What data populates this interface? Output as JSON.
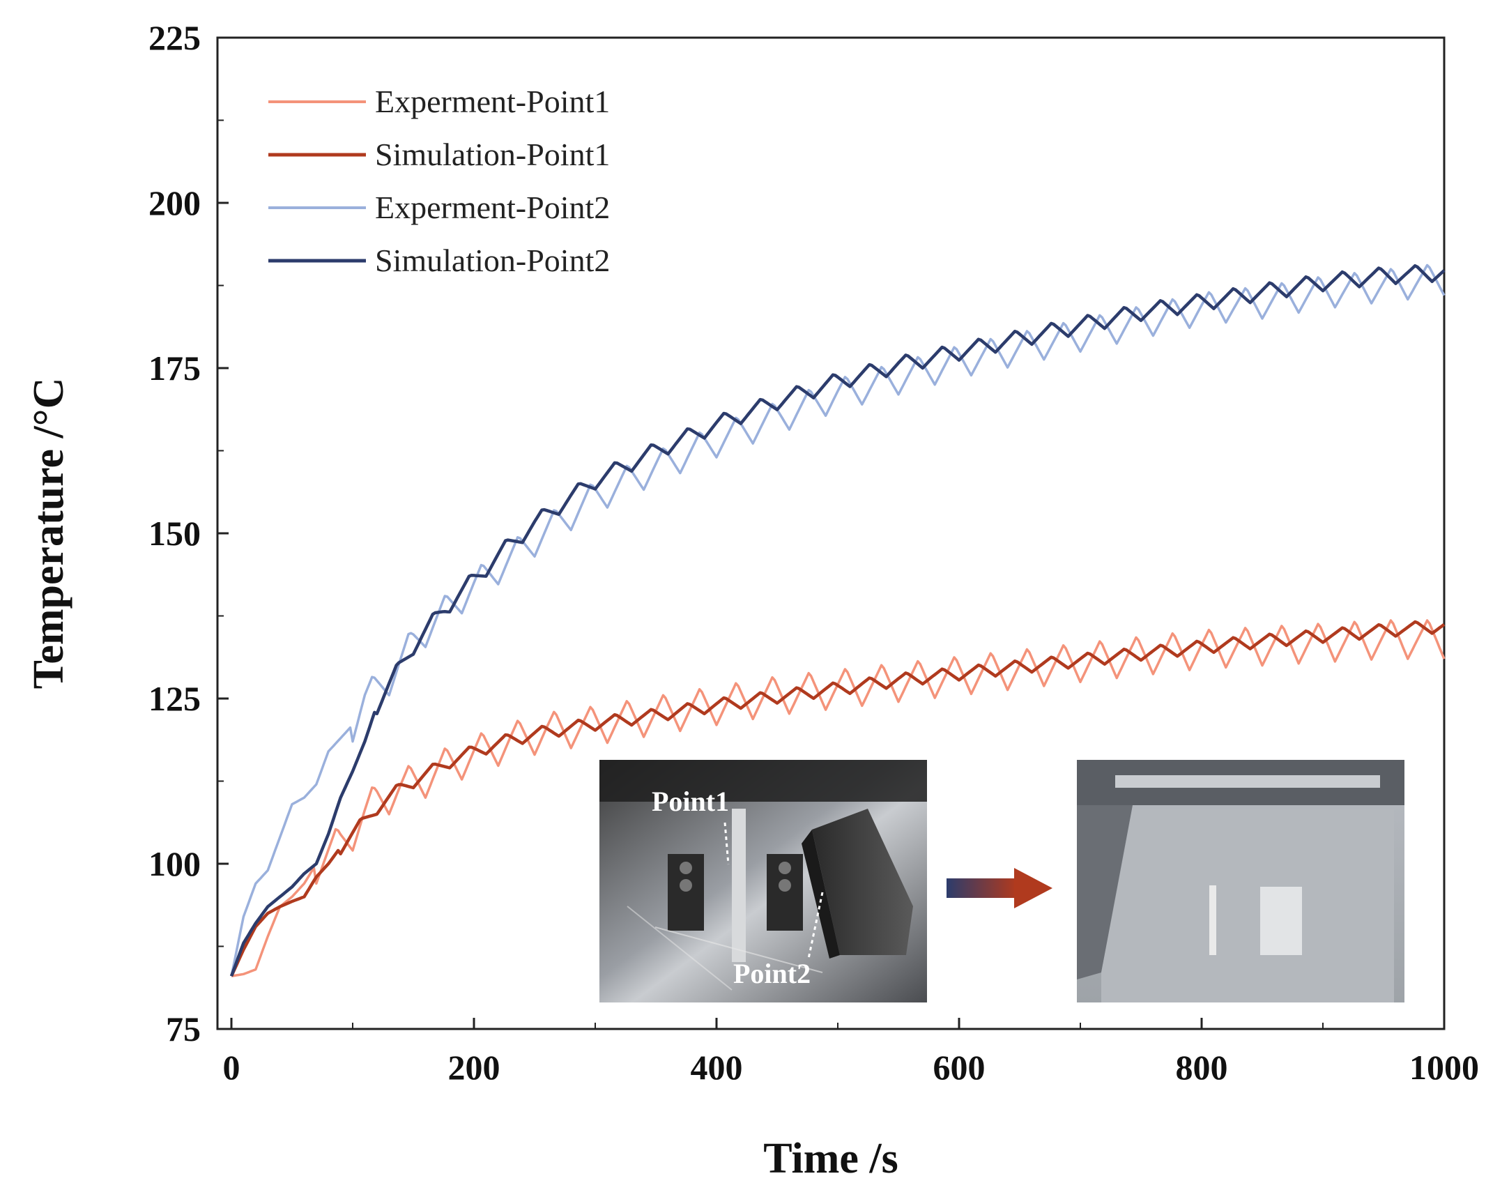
{
  "chart_data": {
    "type": "line",
    "title": "",
    "xlabel": "Time /s",
    "ylabel": "Temperature /°C",
    "xlim": [
      0,
      1000
    ],
    "ylim": [
      75,
      225
    ],
    "xticks": [
      0,
      200,
      400,
      600,
      800,
      1000
    ],
    "yticks": [
      75,
      100,
      125,
      150,
      175,
      200,
      225
    ],
    "grid": false,
    "legend_position": "top-left",
    "series": [
      {
        "name": "Experment-Point1",
        "color": "#f4937a",
        "base": [
          [
            0,
            83
          ],
          [
            10,
            83.3
          ],
          [
            20,
            84
          ],
          [
            30,
            89
          ],
          [
            40,
            93.5
          ],
          [
            50,
            95
          ],
          [
            60,
            97
          ],
          [
            70,
            100
          ],
          [
            80,
            101.5
          ],
          [
            90,
            103
          ],
          [
            100,
            105
          ],
          [
            110,
            107.5
          ],
          [
            120,
            109.5
          ],
          [
            140,
            111.5
          ],
          [
            160,
            113
          ],
          [
            180,
            115
          ],
          [
            200,
            116.5
          ],
          [
            230,
            118.5
          ],
          [
            260,
            120
          ],
          [
            300,
            121
          ],
          [
            350,
            122.5
          ],
          [
            400,
            124
          ],
          [
            450,
            125.5
          ],
          [
            500,
            126.5
          ],
          [
            550,
            127.5
          ],
          [
            600,
            128.5
          ],
          [
            650,
            129.5
          ],
          [
            700,
            130.5
          ],
          [
            750,
            131.5
          ],
          [
            800,
            132.5
          ],
          [
            850,
            133
          ],
          [
            900,
            133.5
          ],
          [
            950,
            134
          ],
          [
            1000,
            134
          ]
        ],
        "wave_amplitude": 3,
        "wave_period": 30,
        "wave_start": 70
      },
      {
        "name": "Simulation-Point1",
        "color": "#b03a1e",
        "base": [
          [
            0,
            83
          ],
          [
            10,
            87
          ],
          [
            20,
            90.5
          ],
          [
            30,
            92.5
          ],
          [
            40,
            93.5
          ],
          [
            50,
            94.3
          ],
          [
            60,
            95
          ],
          [
            70,
            98
          ],
          [
            80,
            100
          ],
          [
            90,
            102.5
          ],
          [
            100,
            104.5
          ],
          [
            120,
            108.5
          ],
          [
            140,
            111.5
          ],
          [
            160,
            113.5
          ],
          [
            180,
            115.5
          ],
          [
            200,
            117
          ],
          [
            230,
            118.8
          ],
          [
            260,
            120
          ],
          [
            300,
            121.2
          ],
          [
            350,
            122.5
          ],
          [
            400,
            124
          ],
          [
            450,
            125.3
          ],
          [
            500,
            126.5
          ],
          [
            550,
            127.8
          ],
          [
            600,
            128.8
          ],
          [
            650,
            129.8
          ],
          [
            700,
            130.8
          ],
          [
            750,
            131.8
          ],
          [
            800,
            132.8
          ],
          [
            850,
            133.7
          ],
          [
            900,
            134.5
          ],
          [
            950,
            135.3
          ],
          [
            1000,
            136
          ]
        ],
        "wave_amplitude": 1,
        "wave_period": 30,
        "wave_start": 90
      },
      {
        "name": "Experment-Point2",
        "color": "#9ab0dc",
        "base": [
          [
            0,
            83
          ],
          [
            10,
            92
          ],
          [
            20,
            97
          ],
          [
            30,
            99
          ],
          [
            40,
            104
          ],
          [
            50,
            109
          ],
          [
            60,
            110
          ],
          [
            70,
            112
          ],
          [
            80,
            117
          ],
          [
            90,
            119
          ],
          [
            100,
            121
          ],
          [
            110,
            125
          ],
          [
            120,
            126.5
          ],
          [
            130,
            128
          ],
          [
            150,
            133.5
          ],
          [
            175,
            138
          ],
          [
            200,
            142
          ],
          [
            225,
            145.5
          ],
          [
            250,
            149
          ],
          [
            280,
            153
          ],
          [
            300,
            155.5
          ],
          [
            350,
            160
          ],
          [
            400,
            164
          ],
          [
            450,
            167.5
          ],
          [
            500,
            171
          ],
          [
            550,
            173.5
          ],
          [
            600,
            176
          ],
          [
            650,
            178
          ],
          [
            700,
            180
          ],
          [
            750,
            182
          ],
          [
            800,
            184
          ],
          [
            850,
            185
          ],
          [
            900,
            186.5
          ],
          [
            950,
            187.5
          ],
          [
            1000,
            188.5
          ]
        ],
        "wave_amplitude": 2.5,
        "wave_period": 30,
        "wave_start": 100
      },
      {
        "name": "Simulation-Point2",
        "color": "#2c3c6c",
        "base": [
          [
            0,
            83
          ],
          [
            10,
            88
          ],
          [
            20,
            91
          ],
          [
            30,
            93.5
          ],
          [
            40,
            95
          ],
          [
            50,
            96.5
          ],
          [
            60,
            98.5
          ],
          [
            70,
            100
          ],
          [
            80,
            104.5
          ],
          [
            90,
            110
          ],
          [
            100,
            114
          ],
          [
            110,
            118.5
          ],
          [
            120,
            124
          ],
          [
            130,
            127
          ],
          [
            150,
            133
          ],
          [
            175,
            138.5
          ],
          [
            200,
            143
          ],
          [
            225,
            147.5
          ],
          [
            250,
            151.5
          ],
          [
            280,
            155.5
          ],
          [
            300,
            158
          ],
          [
            350,
            162.5
          ],
          [
            400,
            166.5
          ],
          [
            450,
            170
          ],
          [
            500,
            173
          ],
          [
            550,
            175.5
          ],
          [
            600,
            177.5
          ],
          [
            650,
            179.5
          ],
          [
            700,
            181.5
          ],
          [
            750,
            183.5
          ],
          [
            800,
            185
          ],
          [
            850,
            186.5
          ],
          [
            900,
            188
          ],
          [
            950,
            189
          ],
          [
            1000,
            189.5
          ]
        ],
        "wave_amplitude": 1.3,
        "wave_period": 30,
        "wave_start": 120
      }
    ]
  },
  "inset": {
    "left_photo_labels": [
      "Point1",
      "Point2"
    ],
    "arrow_colors": [
      "#2c3c6c",
      "#b03a1e"
    ]
  }
}
